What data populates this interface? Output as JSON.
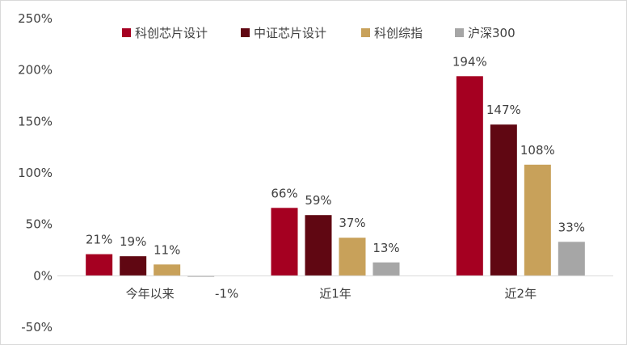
{
  "chart_data": {
    "type": "bar",
    "categories": [
      "今年以来",
      "近1年",
      "近2年"
    ],
    "series": [
      {
        "name": "科创芯片设计",
        "color": "#a50021",
        "values": [
          21,
          66,
          194
        ],
        "labels": [
          "21%",
          "66%",
          "194%"
        ]
      },
      {
        "name": "中证芯片设计",
        "color": "#600712",
        "values": [
          19,
          59,
          147
        ],
        "labels": [
          "19%",
          "59%",
          "147%"
        ]
      },
      {
        "name": "科创综指",
        "color": "#c8a15a",
        "values": [
          11,
          37,
          108
        ],
        "labels": [
          "11%",
          "37%",
          "108%"
        ]
      },
      {
        "name": "沪深300",
        "color": "#a6a6a6",
        "values": [
          -1,
          13,
          33
        ],
        "labels": [
          "-1%",
          "13%",
          "33%"
        ]
      }
    ],
    "yticks": [
      "250%",
      "200%",
      "150%",
      "100%",
      "50%",
      "0%",
      "-50%"
    ],
    "ytick_values": [
      250,
      200,
      150,
      100,
      50,
      0,
      -50
    ],
    "ylim": [
      -50,
      250
    ],
    "grid": false,
    "legend_position": "top"
  }
}
